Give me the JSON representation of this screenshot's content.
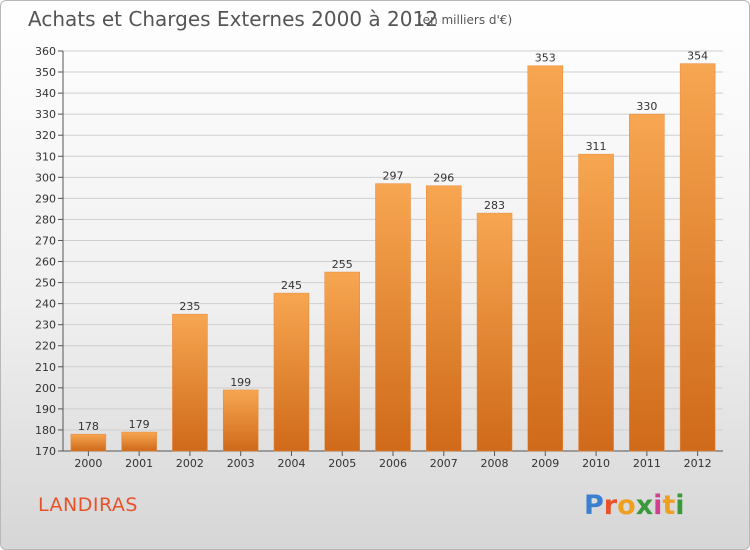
{
  "header": {
    "title": "Achats et Charges Externes 2000 à 2012",
    "subtitle": "(en milliers d'€)"
  },
  "footer": {
    "place": "LANDIRAS",
    "logo_letters": [
      "P",
      "r",
      "o",
      "x",
      "i",
      "t",
      "i"
    ],
    "logo_colors": [
      "#3a7fd0",
      "#e8522a",
      "#f0a020",
      "#3a9a3a",
      "#d04090",
      "#f0a020",
      "#3a9a3a"
    ]
  },
  "chart_data": {
    "type": "bar",
    "categories": [
      "2000",
      "2001",
      "2002",
      "2003",
      "2004",
      "2005",
      "2006",
      "2007",
      "2008",
      "2009",
      "2010",
      "2011",
      "2012"
    ],
    "values": [
      178,
      179,
      235,
      199,
      245,
      255,
      297,
      296,
      283,
      353,
      311,
      330,
      354
    ],
    "value_labels": [
      "178",
      "179",
      "235",
      "199",
      "245",
      "255",
      "297",
      "296",
      "283",
      "353",
      "311",
      "330",
      "354"
    ],
    "title": "Achats et Charges Externes 2000 à 2012",
    "ylim": [
      170,
      360
    ],
    "yticks": [
      170,
      180,
      190,
      200,
      210,
      220,
      230,
      240,
      250,
      260,
      270,
      280,
      290,
      300,
      310,
      320,
      330,
      340,
      350,
      360
    ],
    "grid": true,
    "bar_color_top": "#f7a651",
    "bar_color_bottom": "#cf6a1a"
  }
}
